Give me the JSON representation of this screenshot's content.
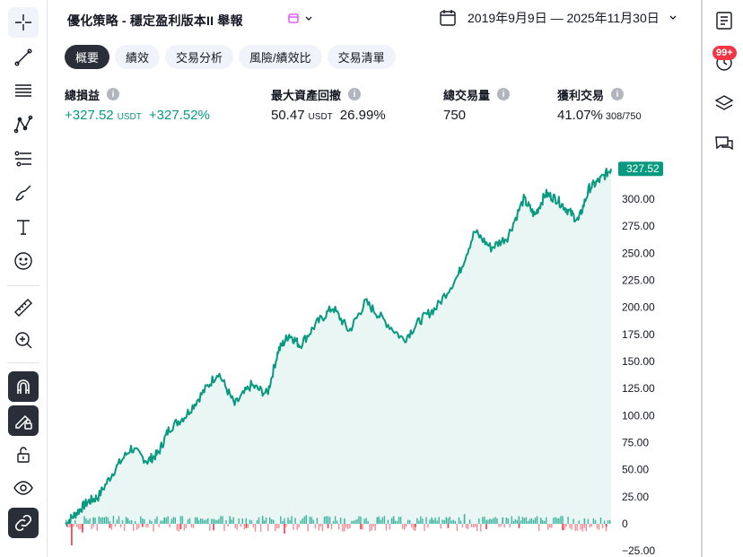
{
  "header": {
    "strategy_title": "優化策略 - 穩定盈利版本II 舉報",
    "date_range": "2019年9月9日 — 2025年11月30日"
  },
  "tabs": [
    {
      "label": "概要",
      "active": true
    },
    {
      "label": "績效",
      "active": false
    },
    {
      "label": "交易分析",
      "active": false
    },
    {
      "label": "風險/績效比",
      "active": false
    },
    {
      "label": "交易清單",
      "active": false
    }
  ],
  "stats": {
    "net_profit": {
      "label": "總損益",
      "value": "+327.52",
      "unit": "USDT",
      "percent": "+327.52%"
    },
    "max_drawdown": {
      "label": "最大資產回撤",
      "value": "50.47",
      "unit": "USDT",
      "percent": "26.99%"
    },
    "total_trades": {
      "label": "總交易量",
      "value": "750"
    },
    "profitable_trades": {
      "label": "獲利交易",
      "value": "41.07%",
      "detail": "308/750"
    }
  },
  "right_toolbar": {
    "notification_badge": "99+"
  },
  "info_glyph": "i",
  "colors": {
    "accent_green": "#089981",
    "loss_red": "#f23645",
    "dark": "#2a2e39"
  },
  "icons": {
    "left_toolbar": [
      "crosshair-icon",
      "trend-line-icon",
      "fib-lines-icon",
      "pattern-icon",
      "forecast-icon",
      "brush-icon",
      "text-icon",
      "emoji-icon",
      "ruler-icon",
      "zoom-in-icon",
      "magnet-icon",
      "lock-drawing-icon",
      "unlock-icon",
      "eye-icon",
      "link-icon"
    ],
    "right_toolbar": [
      "watchlist-icon",
      "alerts-icon",
      "layers-icon",
      "chat-icon"
    ]
  },
  "chart_data": {
    "type": "area",
    "title": "",
    "last_value_label": "327.52",
    "y_ticks": [
      "300.00",
      "275.00",
      "250.00",
      "225.00",
      "200.00",
      "175.00",
      "150.00",
      "125.00",
      "100.00",
      "75.00",
      "50.00",
      "25.00",
      "0",
      "−25.00"
    ],
    "ylim": [
      -28,
      340
    ],
    "series": [
      {
        "role": "equity",
        "color": "#089981",
        "x": [
          0,
          2,
          4,
          6,
          9,
          12,
          15,
          17,
          19,
          22,
          25,
          28,
          31,
          34,
          37,
          39,
          41,
          43,
          46,
          49,
          52,
          55,
          58,
          62,
          65,
          68,
          72,
          75,
          78,
          81,
          84,
          86,
          88,
          90,
          92,
          94,
          96,
          98,
          100
        ],
        "y": [
          0,
          10,
          20,
          25,
          50,
          70,
          58,
          65,
          88,
          100,
          120,
          140,
          110,
          128,
          120,
          160,
          175,
          165,
          185,
          200,
          178,
          205,
          190,
          170,
          188,
          200,
          230,
          270,
          255,
          265,
          300,
          285,
          305,
          300,
          290,
          280,
          310,
          318,
          328
        ]
      }
    ],
    "trade_bars": {
      "baseline": 0,
      "x": [
        1,
        3,
        5,
        8,
        11,
        14,
        18,
        21,
        24,
        27,
        30,
        33,
        36,
        40,
        44,
        48,
        51,
        54,
        57,
        60,
        64,
        67,
        70,
        73,
        77,
        80,
        83,
        87,
        91,
        95,
        99
      ],
      "y": [
        -20,
        -8,
        6,
        -4,
        5,
        -3,
        6,
        -5,
        5,
        -6,
        7,
        -4,
        6,
        -9,
        8,
        -4,
        5,
        -5,
        6,
        7,
        -3,
        5,
        -4,
        9,
        -5,
        6,
        -4,
        5,
        -6,
        5,
        -3
      ]
    },
    "x_axis": "none"
  }
}
